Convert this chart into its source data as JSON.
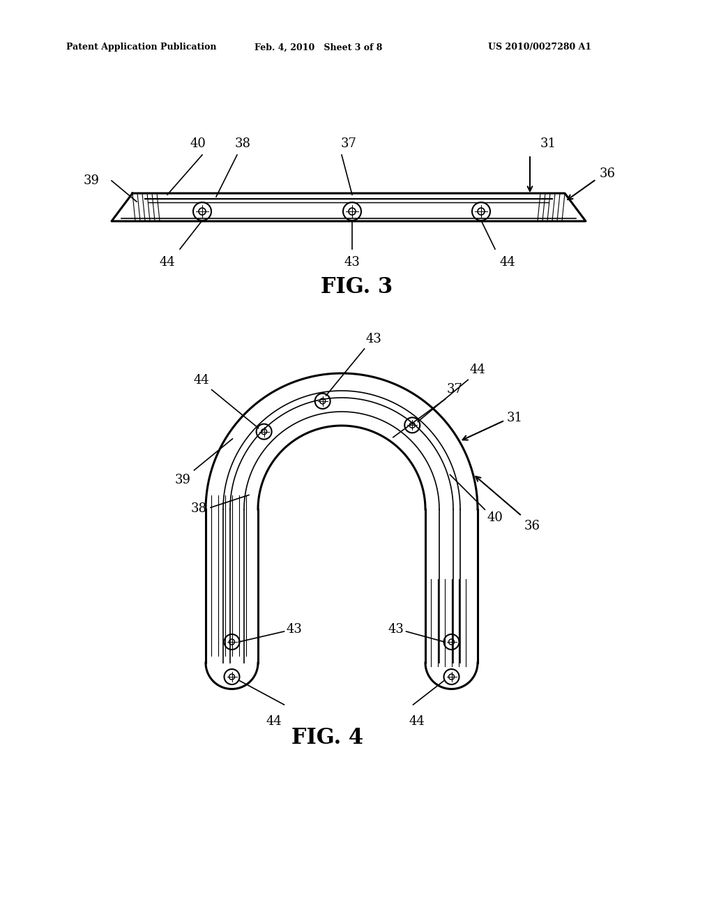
{
  "bg_color": "#ffffff",
  "header_left": "Patent Application Publication",
  "header_mid": "Feb. 4, 2010   Sheet 3 of 8",
  "header_right": "US 2010/0027280 A1",
  "fig3_caption": "FIG. 3",
  "fig4_caption": "FIG. 4",
  "line_color": "#000000",
  "line_width": 1.5,
  "thick_line": 2.2
}
